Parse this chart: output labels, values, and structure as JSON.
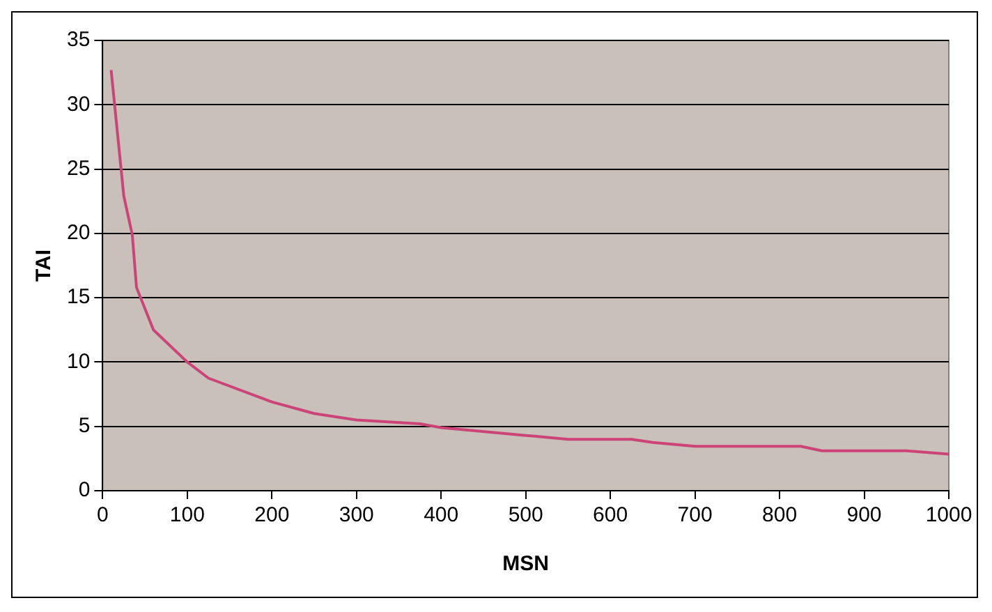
{
  "chart_data": {
    "type": "line",
    "xlabel": "MSN",
    "ylabel": "TAI",
    "series": [
      {
        "color": "#cc4477",
        "x": [
          10,
          25,
          35,
          40,
          60,
          100,
          125,
          200,
          250,
          300,
          375,
          400,
          500,
          550,
          625,
          650,
          700,
          825,
          850,
          950,
          1000
        ],
        "values": [
          32.7,
          22.9,
          19.9,
          15.8,
          12.5,
          10,
          8.75,
          6.9,
          6.0,
          5.5,
          5.2,
          4.9,
          4.3,
          4.0,
          4.0,
          3.75,
          3.45,
          3.45,
          3.1,
          3.1,
          2.85
        ]
      }
    ],
    "xlim": [
      0,
      1000
    ],
    "xticks": [
      0,
      100,
      200,
      300,
      400,
      500,
      600,
      700,
      800,
      900,
      1000
    ],
    "ylim": [
      0,
      35
    ],
    "yticks": [
      0,
      5,
      10,
      15,
      20,
      25,
      30,
      35
    ],
    "grid": "y",
    "legend": false,
    "marker": "none",
    "line_style": "solid"
  }
}
